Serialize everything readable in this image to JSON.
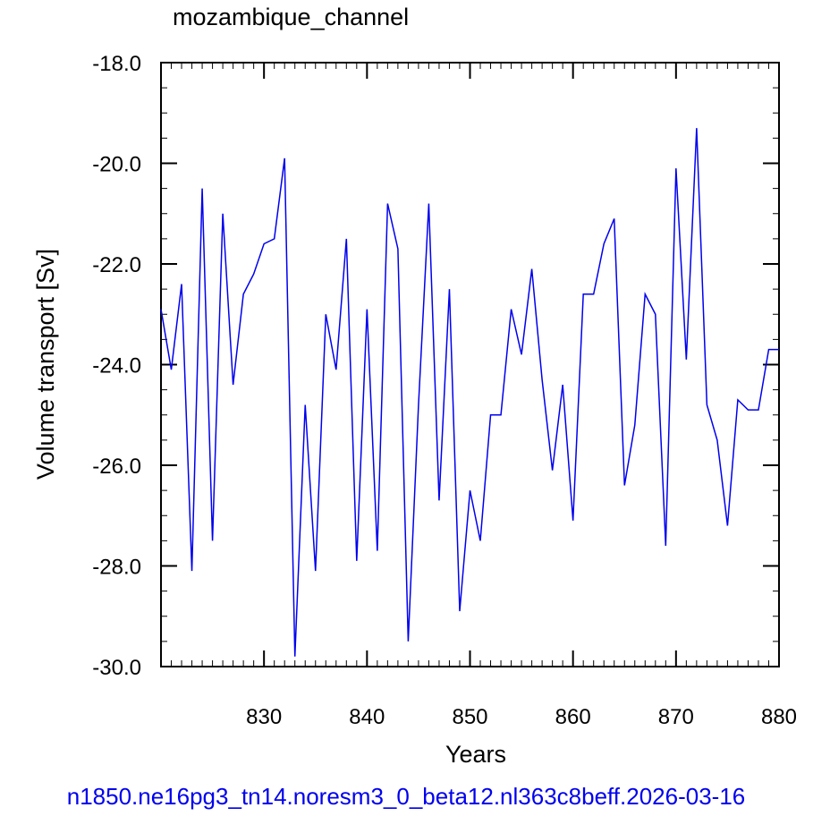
{
  "chart_data": {
    "type": "line",
    "title": "mozambique_channel",
    "xlabel": "Years",
    "ylabel": "Volume transport [Sv]",
    "xlim": [
      820,
      880
    ],
    "ylim": [
      -30.0,
      -18.0
    ],
    "x_major_ticks": [
      830,
      840,
      850,
      860,
      870,
      880
    ],
    "x_tick_labels": [
      "830",
      "840",
      "850",
      "860",
      "870",
      "880"
    ],
    "y_major_ticks": [
      -30.0,
      -28.0,
      -26.0,
      -24.0,
      -22.0,
      -20.0,
      -18.0
    ],
    "y_tick_labels": [
      "-30.0",
      "-28.0",
      "-26.0",
      "-24.0",
      "-22.0",
      "-20.0",
      "-18.0"
    ],
    "grid": false,
    "line_color": "#0000ee",
    "series": [
      {
        "x": [
          820,
          821,
          822,
          823,
          824,
          825,
          826,
          827,
          828,
          829,
          830,
          831,
          832,
          833,
          834,
          835,
          836,
          837,
          838,
          839,
          840,
          841,
          842,
          843,
          844,
          845,
          846,
          847,
          848,
          849,
          850,
          851,
          852,
          853,
          854,
          855,
          856,
          857,
          858,
          859,
          860,
          861,
          862,
          863,
          864,
          865,
          866,
          867,
          868,
          869,
          870,
          871,
          872,
          873,
          874,
          875,
          876,
          877,
          878,
          879,
          880
        ],
        "values": [
          -22.9,
          -24.1,
          -22.4,
          -28.1,
          -20.5,
          -27.5,
          -21.0,
          -24.4,
          -22.6,
          -22.2,
          -21.6,
          -21.5,
          -19.9,
          -29.8,
          -24.8,
          -28.1,
          -23.0,
          -24.1,
          -21.5,
          -27.9,
          -22.9,
          -27.7,
          -20.8,
          -21.7,
          -29.5,
          -24.8,
          -20.8,
          -26.7,
          -22.5,
          -28.9,
          -26.5,
          -27.5,
          -25.0,
          -25.0,
          -22.9,
          -23.8,
          -22.1,
          -24.3,
          -26.1,
          -24.4,
          -27.1,
          -22.6,
          -22.6,
          -21.6,
          -21.1,
          -26.4,
          -25.2,
          -22.6,
          -23.0,
          -27.6,
          -20.1,
          -23.9,
          -19.3,
          -24.8,
          -25.5,
          -27.2,
          -24.7,
          -24.9,
          -24.9,
          -23.7,
          -23.7
        ]
      }
    ]
  },
  "footer": {
    "text": "n1850.ne16pg3_tn14.noresm3_0_beta12.nl363c8beff.2026-03-16",
    "color": "#0000ee"
  }
}
